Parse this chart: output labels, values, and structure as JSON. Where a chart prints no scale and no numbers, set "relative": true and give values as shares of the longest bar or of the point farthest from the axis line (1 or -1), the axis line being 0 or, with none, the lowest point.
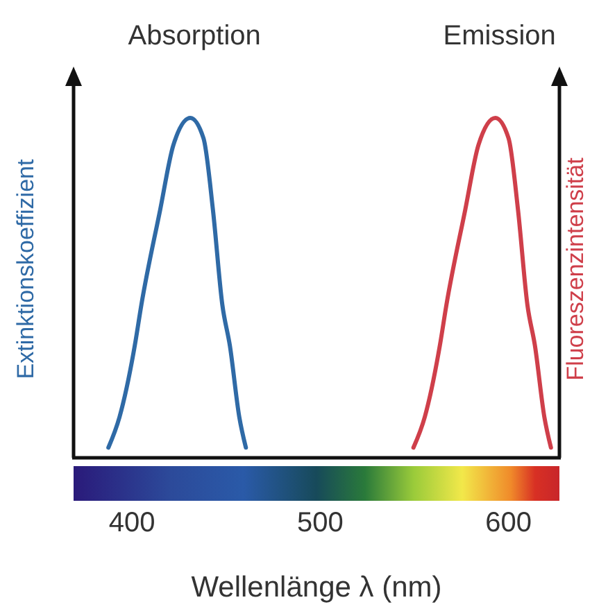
{
  "chart_data": {
    "type": "line",
    "relative": true,
    "xlabel": "Wellenlänge λ (nm)",
    "ylabel": "Extinktionskoeffizient",
    "y2label": "Fluoreszenzintensität",
    "xlim": [
      369,
      627
    ],
    "xticks": [
      400,
      500,
      600
    ],
    "grid": false,
    "marker": "none",
    "line_style": "solid",
    "series": [
      {
        "name": "Absorption",
        "color": "#2f6aa6",
        "x": [
          387.5,
          393.4,
          401.5,
          405,
          415,
          422,
          431,
          438,
          443,
          448,
          452,
          457,
          460.5
        ],
        "values": [
          0.03,
          0.12,
          0.33,
          0.45,
          0.73,
          0.92,
          1,
          0.94,
          0.73,
          0.45,
          0.33,
          0.12,
          0.03
        ]
      },
      {
        "name": "Emission",
        "color": "#cf3f4a",
        "axis": "y2",
        "x": [
          549.5,
          555.5,
          563.5,
          567,
          577,
          584,
          593,
          600,
          605,
          610,
          614,
          619,
          622.5
        ],
        "values": [
          0.03,
          0.12,
          0.33,
          0.45,
          0.73,
          0.92,
          1,
          0.94,
          0.73,
          0.45,
          0.33,
          0.12,
          0.03
        ]
      }
    ]
  }
}
